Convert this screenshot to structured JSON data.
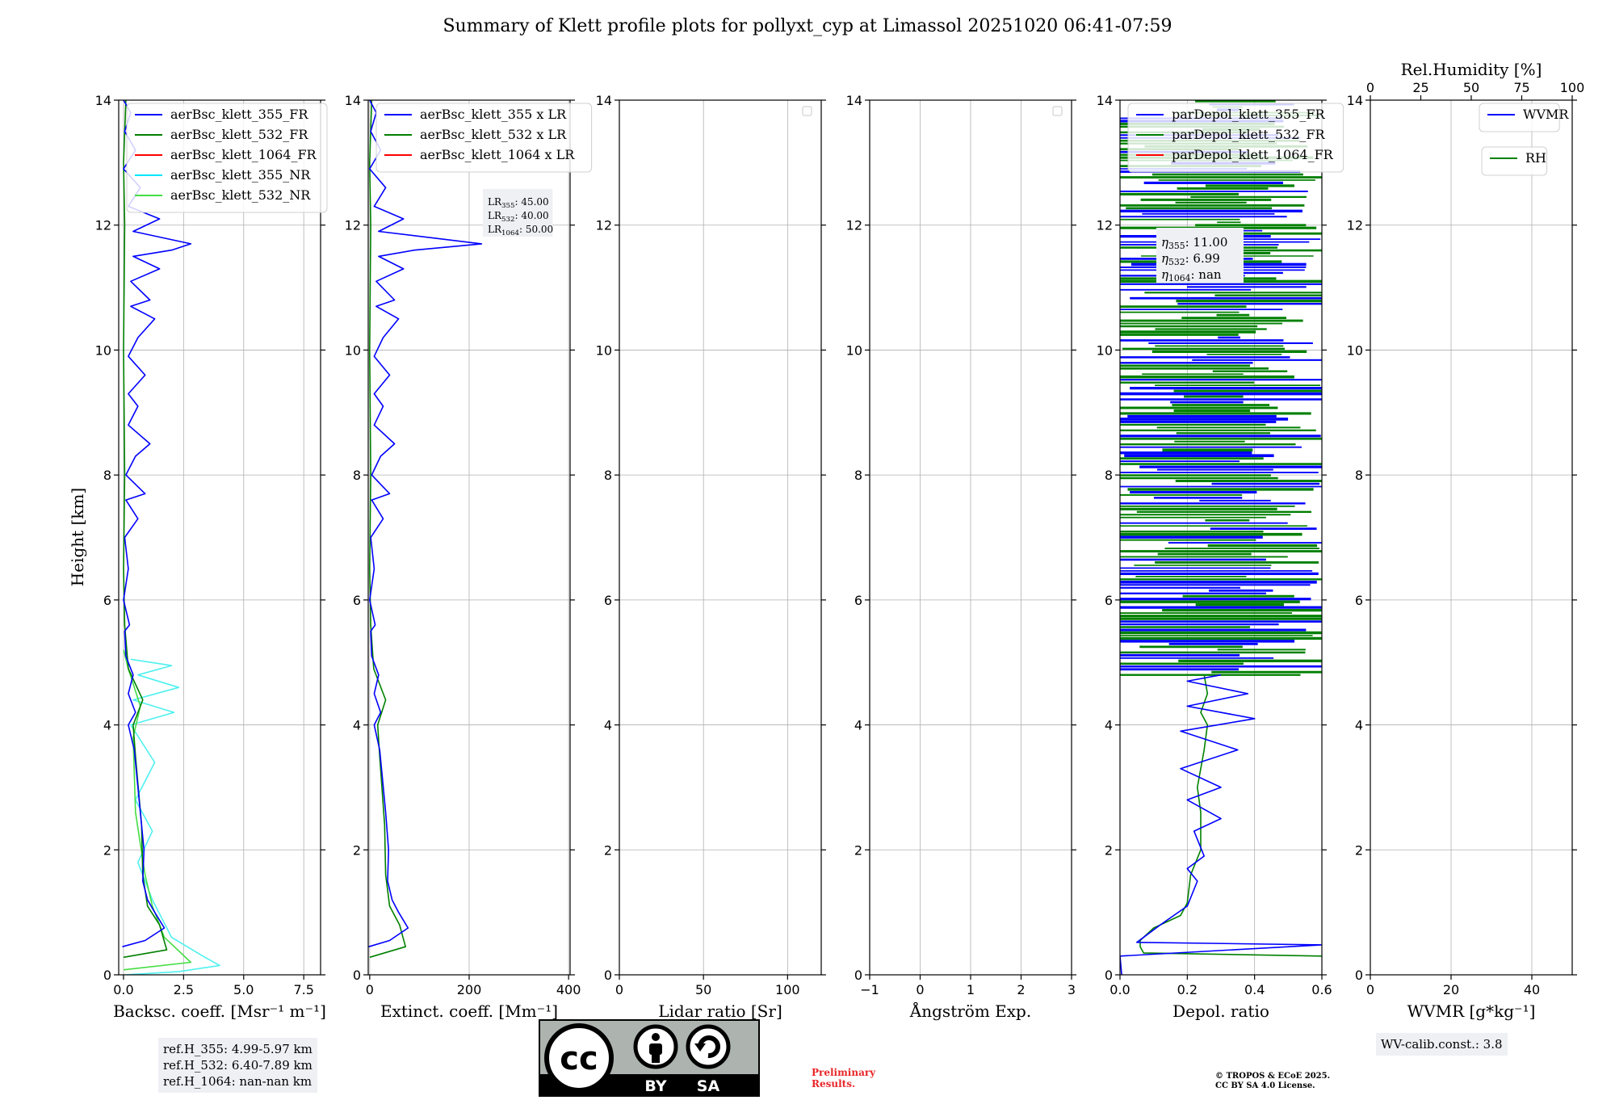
{
  "figure": {
    "title": "Summary of Klett profile plots for pollyxt_cyp at Limassol 20251020 06:41-07:59",
    "ylabel": "Height [km]"
  },
  "ref_heights": [
    "ref.H_355: 4.99-5.97 km",
    "ref.H_532: 6.40-7.89 km",
    "ref.H_1064: nan-nan km"
  ],
  "wv_calib": "WV-calib.const.: 3.8",
  "preliminary": [
    "Preliminary",
    "Results."
  ],
  "copyright": [
    "© TROPOS & ECoE 2025.",
    "CC BY SA 4.0 License."
  ],
  "license_badge": {
    "top": "cc",
    "by": "BY",
    "sa": "SA"
  },
  "chart_data": [
    {
      "id": "backscatter",
      "type": "line",
      "xlabel": "Backsc. coeff. [Msr⁻¹ m⁻¹]",
      "xlim": [
        -0.2,
        8.2
      ],
      "ylim": [
        0,
        14
      ],
      "xticks": [
        0,
        2.5,
        5,
        7.5
      ],
      "xticklabels": [
        "0.0",
        "2.5",
        "5.0",
        "7.5"
      ],
      "yticks": [
        0,
        2,
        4,
        6,
        8,
        10,
        12,
        14
      ],
      "legend": [
        "aerBsc_klett_355_FR",
        "aerBsc_klett_532_FR",
        "aerBsc_klett_1064_FR",
        "aerBsc_klett_355_NR",
        "aerBsc_klett_532_NR"
      ],
      "legend_colors": [
        "#0000ff",
        "#008000",
        "#ff0000",
        "#00e5ff",
        "#44dd44"
      ],
      "series": [
        {
          "name": "aerBsc_klett_355_NR",
          "color": "#4ff0f0",
          "points": [
            [
              0.05,
              0
            ],
            [
              2.3,
              0.05
            ],
            [
              4.0,
              0.15
            ],
            [
              3.3,
              0.3
            ],
            [
              2.0,
              0.6
            ],
            [
              1.2,
              1.2
            ],
            [
              0.6,
              1.8
            ],
            [
              1.2,
              2.3
            ],
            [
              0.5,
              2.8
            ],
            [
              1.3,
              3.4
            ],
            [
              0.3,
              4.0
            ],
            [
              2.1,
              4.2
            ],
            [
              0.4,
              4.4
            ],
            [
              2.3,
              4.6
            ],
            [
              0.6,
              4.8
            ],
            [
              2.0,
              4.95
            ],
            [
              0.3,
              5.05
            ]
          ]
        },
        {
          "name": "aerBsc_klett_532_NR",
          "color": "#44dd44",
          "points": [
            [
              0.0,
              0.08
            ],
            [
              2.8,
              0.2
            ],
            [
              1.7,
              0.6
            ],
            [
              1.2,
              1.1
            ],
            [
              0.9,
              1.6
            ],
            [
              0.5,
              2.6
            ],
            [
              0.4,
              3.8
            ],
            [
              0.7,
              4.3
            ],
            [
              0.2,
              4.9
            ],
            [
              0.0,
              5.2
            ]
          ]
        },
        {
          "name": "aerBsc_klett_532_FR",
          "color": "#008000",
          "points": [
            [
              0.0,
              0.28
            ],
            [
              1.8,
              0.4
            ],
            [
              1.5,
              0.8
            ],
            [
              1.0,
              1.1
            ],
            [
              0.8,
              1.6
            ],
            [
              0.75,
              2.4
            ],
            [
              0.5,
              3.5
            ],
            [
              0.4,
              4.0
            ],
            [
              0.8,
              4.4
            ],
            [
              0.2,
              4.9
            ],
            [
              0.05,
              5.6
            ],
            [
              0.0,
              6.5
            ],
            [
              0.05,
              8
            ],
            [
              0.0,
              10
            ],
            [
              0.05,
              12
            ],
            [
              0.0,
              13
            ],
            [
              0.1,
              14
            ]
          ]
        },
        {
          "name": "aerBsc_klett_355_FR",
          "color": "#0000ff",
          "points": [
            [
              -0.05,
              0.45
            ],
            [
              0.9,
              0.55
            ],
            [
              1.7,
              0.75
            ],
            [
              1.3,
              1.0
            ],
            [
              1.0,
              1.2
            ],
            [
              0.8,
              1.5
            ],
            [
              0.85,
              2.0
            ],
            [
              0.7,
              2.6
            ],
            [
              0.55,
              3.2
            ],
            [
              0.45,
              3.6
            ],
            [
              0.2,
              4.0
            ],
            [
              0.5,
              4.2
            ],
            [
              0.2,
              4.5
            ],
            [
              0.4,
              4.8
            ],
            [
              0.1,
              5.1
            ],
            [
              0.05,
              5.5
            ],
            [
              0.25,
              5.6
            ],
            [
              0.0,
              6.0
            ],
            [
              0.2,
              6.5
            ],
            [
              0.05,
              7.0
            ],
            [
              0.6,
              7.3
            ],
            [
              0.1,
              7.6
            ],
            [
              0.9,
              7.7
            ],
            [
              0.1,
              8.0
            ],
            [
              0.5,
              8.3
            ],
            [
              1.1,
              8.5
            ],
            [
              0.2,
              8.8
            ],
            [
              0.6,
              9.1
            ],
            [
              0.2,
              9.3
            ],
            [
              0.9,
              9.6
            ],
            [
              0.2,
              9.9
            ],
            [
              0.6,
              10.2
            ],
            [
              1.3,
              10.5
            ],
            [
              0.3,
              10.7
            ],
            [
              1.1,
              10.8
            ],
            [
              0.3,
              11.1
            ],
            [
              1.5,
              11.3
            ],
            [
              0.4,
              11.5
            ],
            [
              2.0,
              11.6
            ],
            [
              2.8,
              11.7
            ],
            [
              0.4,
              11.9
            ],
            [
              1.5,
              12.1
            ],
            [
              0.2,
              12.3
            ],
            [
              0.7,
              12.6
            ],
            [
              0.0,
              12.9
            ],
            [
              0.5,
              13.2
            ],
            [
              0.05,
              13.5
            ],
            [
              0.3,
              13.8
            ],
            [
              0.0,
              14
            ]
          ]
        }
      ]
    },
    {
      "id": "extinction",
      "type": "line",
      "xlabel": "Extinct. coeff. [Mm⁻¹]",
      "xlim": [
        -3,
        403
      ],
      "ylim": [
        0,
        14
      ],
      "xticks": [
        0,
        200,
        400
      ],
      "xticklabels": [
        "0",
        "200",
        "400"
      ],
      "yticks": [
        0,
        2,
        4,
        6,
        8,
        10,
        12,
        14
      ],
      "legend": [
        "aerBsc_klett_355 x LR",
        "aerBsc_klett_532 x LR",
        "aerBsc_klett_1064 x LR"
      ],
      "legend_colors": [
        "#0000ff",
        "#008000",
        "#ff0000"
      ],
      "lidar_ratios": [
        [
          "LR",
          "355",
          ": 45.00"
        ],
        [
          "LR",
          "532",
          ": 40.00"
        ],
        [
          "LR",
          "1064",
          ": 50.00"
        ]
      ],
      "series": [
        {
          "name": "aerBsc_klett_532 x LR",
          "color": "#008000",
          "points": [
            [
              0,
              0.28
            ],
            [
              72,
              0.45
            ],
            [
              60,
              0.8
            ],
            [
              40,
              1.1
            ],
            [
              32,
              1.6
            ],
            [
              30,
              2.4
            ],
            [
              20,
              3.5
            ],
            [
              16,
              4.0
            ],
            [
              32,
              4.4
            ],
            [
              8,
              4.9
            ],
            [
              2,
              5.6
            ],
            [
              0,
              6.5
            ],
            [
              2,
              8
            ],
            [
              0,
              10
            ],
            [
              2,
              12
            ],
            [
              0,
              13
            ],
            [
              4,
              14
            ]
          ]
        },
        {
          "name": "aerBsc_klett_355 x LR",
          "color": "#0000ff",
          "points": [
            [
              -2,
              0.45
            ],
            [
              40,
              0.55
            ],
            [
              77,
              0.75
            ],
            [
              58,
              1.0
            ],
            [
              45,
              1.2
            ],
            [
              36,
              1.5
            ],
            [
              38,
              2.0
            ],
            [
              32,
              2.6
            ],
            [
              25,
              3.2
            ],
            [
              20,
              3.6
            ],
            [
              9,
              4.0
            ],
            [
              22,
              4.2
            ],
            [
              9,
              4.5
            ],
            [
              18,
              4.8
            ],
            [
              4,
              5.1
            ],
            [
              2,
              5.5
            ],
            [
              11,
              5.6
            ],
            [
              0,
              6.0
            ],
            [
              9,
              6.5
            ],
            [
              2,
              7.0
            ],
            [
              27,
              7.3
            ],
            [
              4,
              7.6
            ],
            [
              40,
              7.7
            ],
            [
              4,
              8.0
            ],
            [
              22,
              8.3
            ],
            [
              50,
              8.5
            ],
            [
              9,
              8.8
            ],
            [
              27,
              9.1
            ],
            [
              9,
              9.3
            ],
            [
              40,
              9.6
            ],
            [
              9,
              9.9
            ],
            [
              27,
              10.2
            ],
            [
              58,
              10.5
            ],
            [
              13,
              10.7
            ],
            [
              50,
              10.8
            ],
            [
              13,
              11.1
            ],
            [
              68,
              11.3
            ],
            [
              18,
              11.5
            ],
            [
              90,
              11.6
            ],
            [
              225,
              11.7
            ],
            [
              18,
              11.9
            ],
            [
              68,
              12.1
            ],
            [
              9,
              12.3
            ],
            [
              32,
              12.6
            ],
            [
              0,
              12.9
            ],
            [
              22,
              13.2
            ],
            [
              2,
              13.5
            ],
            [
              13,
              13.8
            ],
            [
              0,
              14
            ]
          ]
        }
      ]
    },
    {
      "id": "lidar_ratio",
      "type": "line",
      "xlabel": "Lidar ratio [Sr]",
      "xlim": [
        0,
        120
      ],
      "ylim": [
        0,
        14
      ],
      "xticks": [
        0,
        50,
        100
      ],
      "xticklabels": [
        "0",
        "50",
        "100"
      ],
      "yticks": [
        0,
        2,
        4,
        6,
        8,
        10,
        12,
        14
      ],
      "series": []
    },
    {
      "id": "angstrom",
      "type": "line",
      "xlabel": "Ångström Exp.",
      "xlim": [
        -1,
        3
      ],
      "ylim": [
        0,
        14
      ],
      "xticks": [
        -1,
        0,
        1,
        2,
        3
      ],
      "xticklabels": [
        "−1",
        "0",
        "1",
        "2",
        "3"
      ],
      "yticks": [
        0,
        2,
        4,
        6,
        8,
        10,
        12,
        14
      ],
      "series": []
    },
    {
      "id": "depol",
      "type": "line",
      "xlabel": "Depol. ratio",
      "xlim": [
        0,
        0.6
      ],
      "ylim": [
        0,
        14
      ],
      "xticks": [
        0,
        0.2,
        0.4,
        0.6
      ],
      "xticklabels": [
        "0.0",
        "0.2",
        "0.4",
        "0.6"
      ],
      "yticks": [
        0,
        2,
        4,
        6,
        8,
        10,
        12,
        14
      ],
      "legend": [
        "parDepol_klett_355_FR",
        "parDepol_klett_532_FR",
        "parDepol_klett_1064_FR"
      ],
      "legend_colors": [
        "#0000ff",
        "#008000",
        "#ff0000"
      ],
      "eta": [
        [
          "η",
          "355",
          ": 11.00"
        ],
        [
          "η",
          "532",
          ": 6.99"
        ],
        [
          "η",
          "1064",
          ": nan"
        ]
      ],
      "noise_start_km": 4.8,
      "series": [
        {
          "name": "parDepol_klett_532_FR",
          "color": "#008000",
          "points": [
            [
              0.6,
              0.3
            ],
            [
              0.07,
              0.35
            ],
            [
              0.06,
              0.45
            ],
            [
              0.06,
              0.55
            ],
            [
              0.1,
              0.75
            ],
            [
              0.18,
              0.95
            ],
            [
              0.2,
              1.15
            ],
            [
              0.21,
              1.6
            ],
            [
              0.24,
              2.0
            ],
            [
              0.24,
              2.6
            ],
            [
              0.23,
              3.0
            ],
            [
              0.25,
              3.6
            ],
            [
              0.26,
              4.0
            ],
            [
              0.24,
              4.2
            ],
            [
              0.26,
              4.5
            ],
            [
              0.25,
              4.8
            ]
          ]
        },
        {
          "name": "parDepol_klett_355_FR",
          "color": "#0000ff",
          "points": [
            [
              0.005,
              0.0
            ],
            [
              0.0,
              0.3
            ],
            [
              0.6,
              0.48
            ],
            [
              0.05,
              0.52
            ],
            [
              0.12,
              0.8
            ],
            [
              0.2,
              1.1
            ],
            [
              0.23,
              1.5
            ],
            [
              0.2,
              1.7
            ],
            [
              0.25,
              1.9
            ],
            [
              0.22,
              2.3
            ],
            [
              0.3,
              2.5
            ],
            [
              0.2,
              2.8
            ],
            [
              0.3,
              3.0
            ],
            [
              0.18,
              3.3
            ],
            [
              0.35,
              3.6
            ],
            [
              0.18,
              3.9
            ],
            [
              0.4,
              4.1
            ],
            [
              0.2,
              4.3
            ],
            [
              0.38,
              4.5
            ],
            [
              0.2,
              4.7
            ],
            [
              0.3,
              4.8
            ]
          ]
        }
      ]
    },
    {
      "id": "wvmr",
      "type": "line",
      "xlabel": "WVMR [g*kg⁻¹]",
      "xlim": [
        0,
        50
      ],
      "ylim": [
        0,
        14
      ],
      "xticks": [
        0,
        20,
        40
      ],
      "xticklabels": [
        "0",
        "20",
        "40"
      ],
      "yticks": [
        0,
        2,
        4,
        6,
        8,
        10,
        12,
        14
      ],
      "top_xlabel": "Rel.Humidity [%]",
      "top_xlim": [
        0,
        100
      ],
      "top_xticks": [
        0,
        25,
        50,
        75,
        100
      ],
      "top_xticklabels": [
        "0",
        "25",
        "50",
        "75",
        "100"
      ],
      "legend": [
        "WVMR"
      ],
      "legend_colors": [
        "#0000ff"
      ],
      "legend2": [
        "RH"
      ],
      "legend2_colors": [
        "#008000"
      ],
      "series": []
    }
  ]
}
